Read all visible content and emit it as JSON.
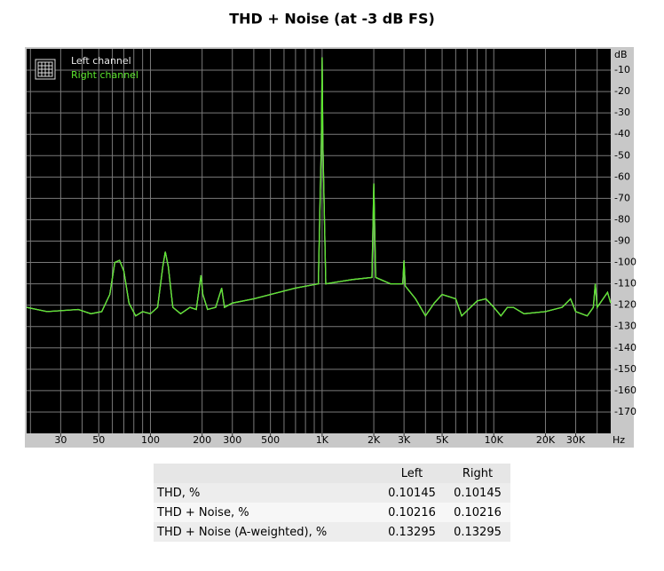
{
  "chart_data": {
    "type": "line",
    "title": "THD + Noise (at -3 dB FS)",
    "xscale": "log",
    "xlim": [
      19,
      48000
    ],
    "ylim": [
      -180,
      0
    ],
    "grid": true,
    "legend": "top-left",
    "xunit": "Hz",
    "yunit": "dB",
    "xticks": [
      30,
      50,
      100,
      200,
      300,
      500,
      {
        "value": 1000,
        "label": "1K"
      },
      {
        "value": 2000,
        "label": "2K"
      },
      {
        "value": 3000,
        "label": "3K"
      },
      {
        "value": 5000,
        "label": "5K"
      },
      {
        "value": 10000,
        "label": "10K"
      },
      {
        "value": 20000,
        "label": "20K"
      },
      {
        "value": 30000,
        "label": "30K"
      }
    ],
    "xgrid": [
      20,
      30,
      40,
      50,
      60,
      70,
      80,
      90,
      100,
      200,
      300,
      400,
      500,
      600,
      700,
      800,
      900,
      1000,
      2000,
      3000,
      4000,
      5000,
      6000,
      7000,
      8000,
      9000,
      10000,
      20000,
      30000,
      40000
    ],
    "yticks": [
      -10,
      -20,
      -30,
      -40,
      -50,
      -60,
      -70,
      -80,
      -90,
      -100,
      -110,
      -120,
      -130,
      -140,
      -150,
      -160,
      -170
    ],
    "x": [
      19,
      25,
      38,
      45,
      52,
      58,
      62,
      66,
      70,
      75,
      82,
      90,
      100,
      110,
      118,
      122,
      127,
      135,
      150,
      170,
      185,
      197,
      202,
      215,
      240,
      260,
      270,
      300,
      400,
      500,
      700,
      950,
      990,
      1000,
      1010,
      1050,
      1500,
      1950,
      2000,
      2050,
      2500,
      2950,
      3000,
      3050,
      3500,
      4000,
      4500,
      5000,
      6000,
      6500,
      8000,
      9000,
      10000,
      11000,
      12000,
      13000,
      15000,
      20000,
      25000,
      28000,
      30000,
      35000,
      38000,
      39000,
      40000,
      46000,
      48000
    ],
    "series": [
      {
        "name": "Left channel",
        "color": "#e8e8e8",
        "values": [
          -121,
          -123,
          -122,
          -124,
          -123,
          -115,
          -100,
          -99,
          -104,
          -119,
          -125,
          -123,
          -124,
          -121,
          -102,
          -95,
          -102,
          -121,
          -124,
          -121,
          -122,
          -106,
          -115,
          -122,
          -121,
          -112,
          -121,
          -119,
          -117,
          -115,
          -112,
          -110,
          -44,
          -4,
          -44,
          -110,
          -108,
          -107,
          -63,
          -107,
          -110,
          -110,
          -99,
          -111,
          -117,
          -125,
          -119,
          -115,
          -117,
          -125,
          -118,
          -117,
          -121,
          -125,
          -121,
          -121,
          -124,
          -123,
          -121,
          -117,
          -123,
          -125,
          -121,
          -110,
          -121,
          -114,
          -119
        ]
      },
      {
        "name": "Right channel",
        "color": "#5ce62e",
        "values": [
          -121,
          -123,
          -122,
          -124,
          -123,
          -115,
          -100,
          -99,
          -104,
          -119,
          -125,
          -123,
          -124,
          -121,
          -102,
          -95,
          -102,
          -121,
          -124,
          -121,
          -122,
          -106,
          -115,
          -122,
          -121,
          -112,
          -121,
          -119,
          -117,
          -115,
          -112,
          -110,
          -44,
          -4,
          -44,
          -110,
          -108,
          -107,
          -63,
          -107,
          -110,
          -110,
          -99,
          -111,
          -117,
          -125,
          -119,
          -115,
          -117,
          -125,
          -118,
          -117,
          -121,
          -125,
          -121,
          -121,
          -124,
          -123,
          -121,
          -117,
          -123,
          -125,
          -121,
          -110,
          -121,
          -114,
          -119
        ]
      }
    ]
  },
  "table": {
    "headers": [
      "Left",
      "Right"
    ],
    "rows": [
      [
        "THD, %",
        0.10145,
        0.10145
      ],
      [
        "THD + Noise, %",
        0.10216,
        0.10216
      ],
      [
        "THD + Noise (A-weighted), %",
        0.13295,
        0.13295
      ]
    ]
  }
}
